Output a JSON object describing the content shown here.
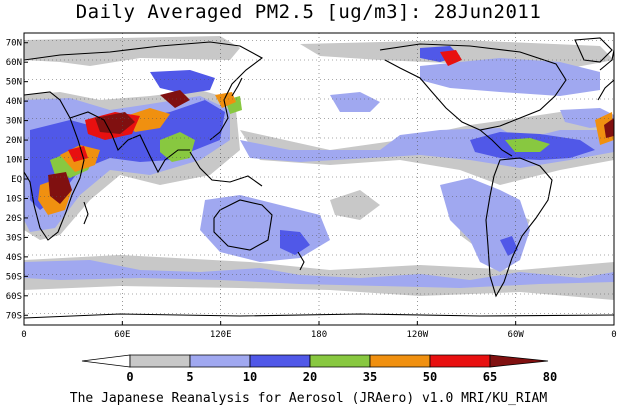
{
  "title": "Daily Averaged PM2.5 [ug/m3]: 28Jun2011",
  "credit": "The Japanese Reanalysis for Aerosol (JRAero) v1.0 MRI/KU_RIAM",
  "lat_labels": [
    "70N",
    "60N",
    "50N",
    "40N",
    "30N",
    "20N",
    "10N",
    "EQ",
    "10S",
    "20S",
    "30S",
    "40S",
    "50S",
    "60S",
    "70S"
  ],
  "lon_labels": [
    "0",
    "60E",
    "120E",
    "180",
    "120W",
    "60W",
    "0"
  ],
  "colorbar": {
    "labels": [
      "0",
      "5",
      "10",
      "20",
      "35",
      "50",
      "65",
      "80"
    ],
    "colors": [
      "#ffffff",
      "#c8c8c8",
      "#a0a8f0",
      "#5058e8",
      "#88c840",
      "#f09010",
      "#e81010",
      "#801010"
    ]
  },
  "map": {
    "projection": "cylindrical equidistant",
    "lon_range": [
      0,
      360
    ],
    "lat_range": [
      -75,
      75
    ],
    "grid": "dotted, every 10 deg lat / 60 deg lon"
  }
}
